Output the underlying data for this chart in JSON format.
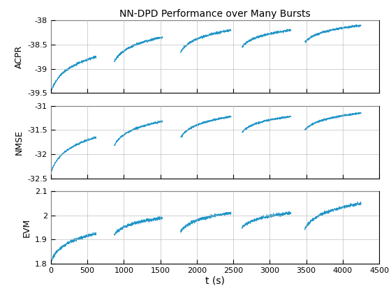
{
  "title": "NN-DPD Performance over Many Bursts",
  "xlabel": "t (s)",
  "ylabels": [
    "ACPR",
    "NMSE",
    "EVM"
  ],
  "xlim": [
    0,
    4500
  ],
  "xticks": [
    0,
    500,
    1000,
    1500,
    2000,
    2500,
    3000,
    3500,
    4000,
    4500
  ],
  "line_color": "#2196c8",
  "line_width": 0.6,
  "bursts": [
    {
      "start": 10,
      "end": 620
    },
    {
      "start": 870,
      "end": 1530
    },
    {
      "start": 1780,
      "end": 2470
    },
    {
      "start": 2620,
      "end": 3290
    },
    {
      "start": 3480,
      "end": 4250
    }
  ],
  "acpr": {
    "ylim": [
      -39.5,
      -38.0
    ],
    "yticks": [
      -39.5,
      -39.0,
      -38.5,
      -38.0
    ],
    "bursts_start": [
      -39.45,
      -38.85,
      -38.65,
      -38.55,
      -38.45
    ],
    "bursts_end": [
      -38.75,
      -38.35,
      -38.2,
      -38.2,
      -38.1
    ],
    "noise": 0.012
  },
  "nmse": {
    "ylim": [
      -32.5,
      -31.0
    ],
    "yticks": [
      -32.5,
      -32.0,
      -31.5,
      -31.0
    ],
    "bursts_start": [
      -32.35,
      -31.82,
      -31.65,
      -31.55,
      -31.5
    ],
    "bursts_end": [
      -31.65,
      -31.32,
      -31.22,
      -31.22,
      -31.15
    ],
    "noise": 0.01
  },
  "evm": {
    "ylim": [
      1.8,
      2.1
    ],
    "yticks": [
      1.8,
      1.9,
      2.0,
      2.1
    ],
    "bursts_start": [
      1.815,
      1.92,
      1.935,
      1.95,
      1.945
    ],
    "bursts_end": [
      1.925,
      1.99,
      2.01,
      2.01,
      2.05
    ],
    "noise": 0.003
  },
  "background_color": "#ffffff",
  "grid_color": "#c0c0c0",
  "fig_width": 5.6,
  "fig_height": 4.2,
  "dpi": 100
}
